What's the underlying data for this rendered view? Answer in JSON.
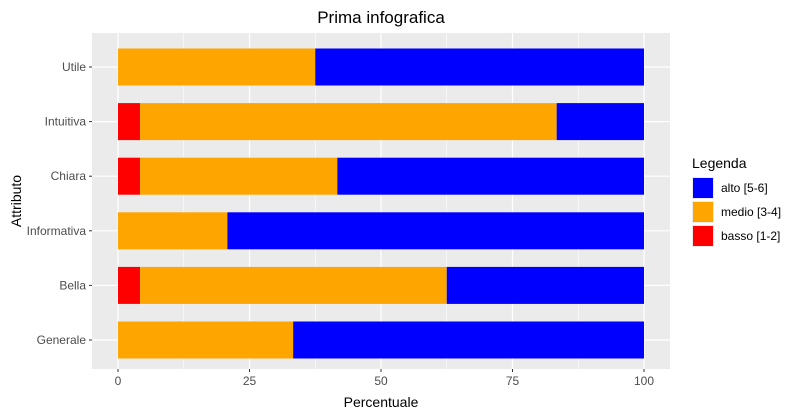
{
  "chart_data": {
    "type": "bar",
    "orientation": "horizontal",
    "stacked": true,
    "title": "Prima infografica",
    "xlabel": "Percentuale",
    "ylabel": "Attributo",
    "xlim": [
      0,
      100
    ],
    "x_ticks": [
      "0",
      "25",
      "50",
      "75",
      "100"
    ],
    "x_tick_values": [
      0,
      25,
      50,
      75,
      100
    ],
    "categories": [
      "Utile",
      "Intuitiva",
      "Chiara",
      "Informativa",
      "Bella",
      "Generale"
    ],
    "series": [
      {
        "name": "basso [1-2]",
        "color": "#ff0000",
        "values": [
          0,
          4.2,
          4.2,
          0,
          4.2,
          0
        ]
      },
      {
        "name": "medio [3-4]",
        "color": "#ffa500",
        "values": [
          37.5,
          79.2,
          37.5,
          20.8,
          58.3,
          33.3
        ]
      },
      {
        "name": "alto [5-6]",
        "color": "#0000ff",
        "values": [
          62.5,
          16.6,
          58.3,
          79.2,
          37.5,
          66.7
        ]
      }
    ],
    "legend": {
      "title": "Legenda",
      "position": "right",
      "order": [
        "alto [5-6]",
        "medio [3-4]",
        "basso [1-2]"
      ]
    },
    "grid": true,
    "panel_background": "#ebebeb",
    "grid_color": "#ffffff"
  }
}
